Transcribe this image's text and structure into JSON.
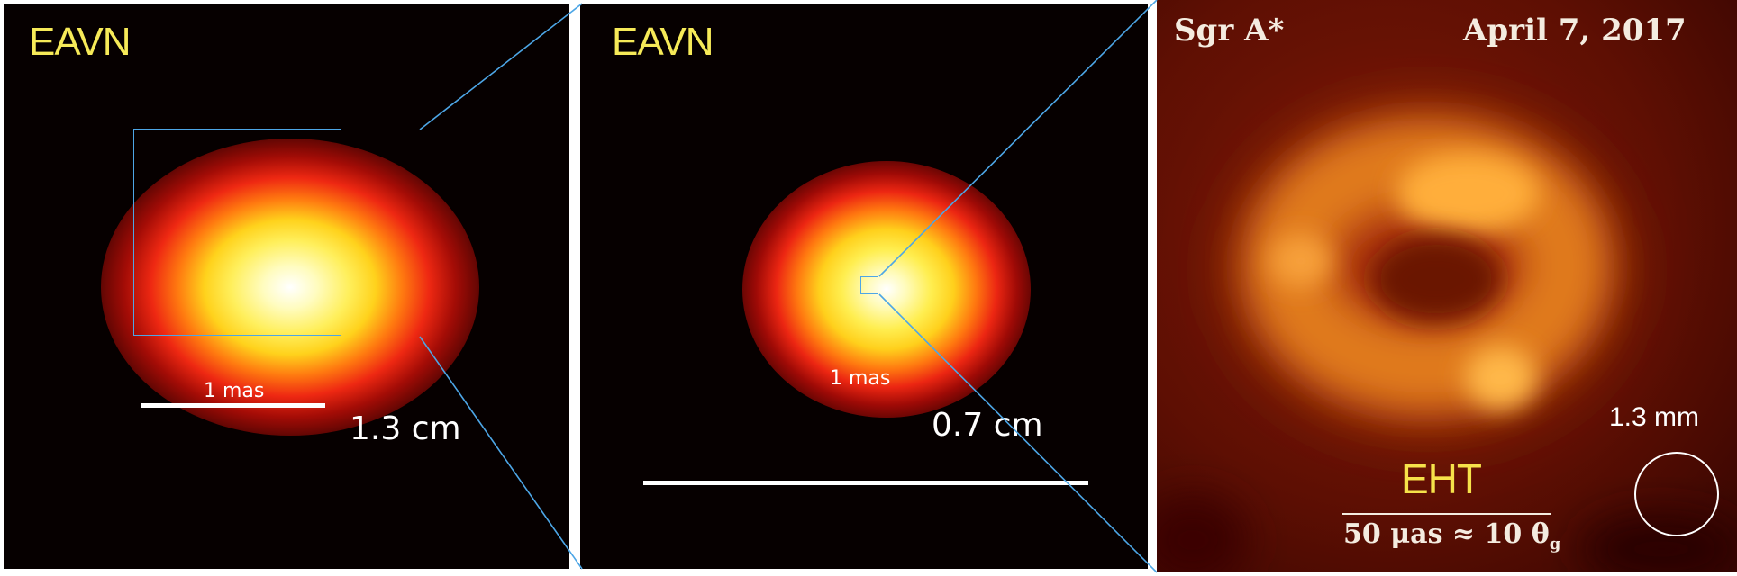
{
  "panels": [
    {
      "label": "EAVN",
      "scale_bar_label": "1 mas",
      "wavelength": "1.3 cm"
    },
    {
      "label": "EAVN",
      "scale_bar_label": "1 mas",
      "wavelength": "0.7 cm"
    },
    {
      "source": "Sgr A*",
      "date": "April 7, 2017",
      "beam_label": "1.3 mm",
      "label": "EHT",
      "scale_label": "50 μas ≈ 10 θ",
      "scale_label_subscript": "g"
    }
  ],
  "colors": {
    "label_yellow": "#f6ea58",
    "zoom_lines": "#4da6e6",
    "background": "#060000"
  }
}
